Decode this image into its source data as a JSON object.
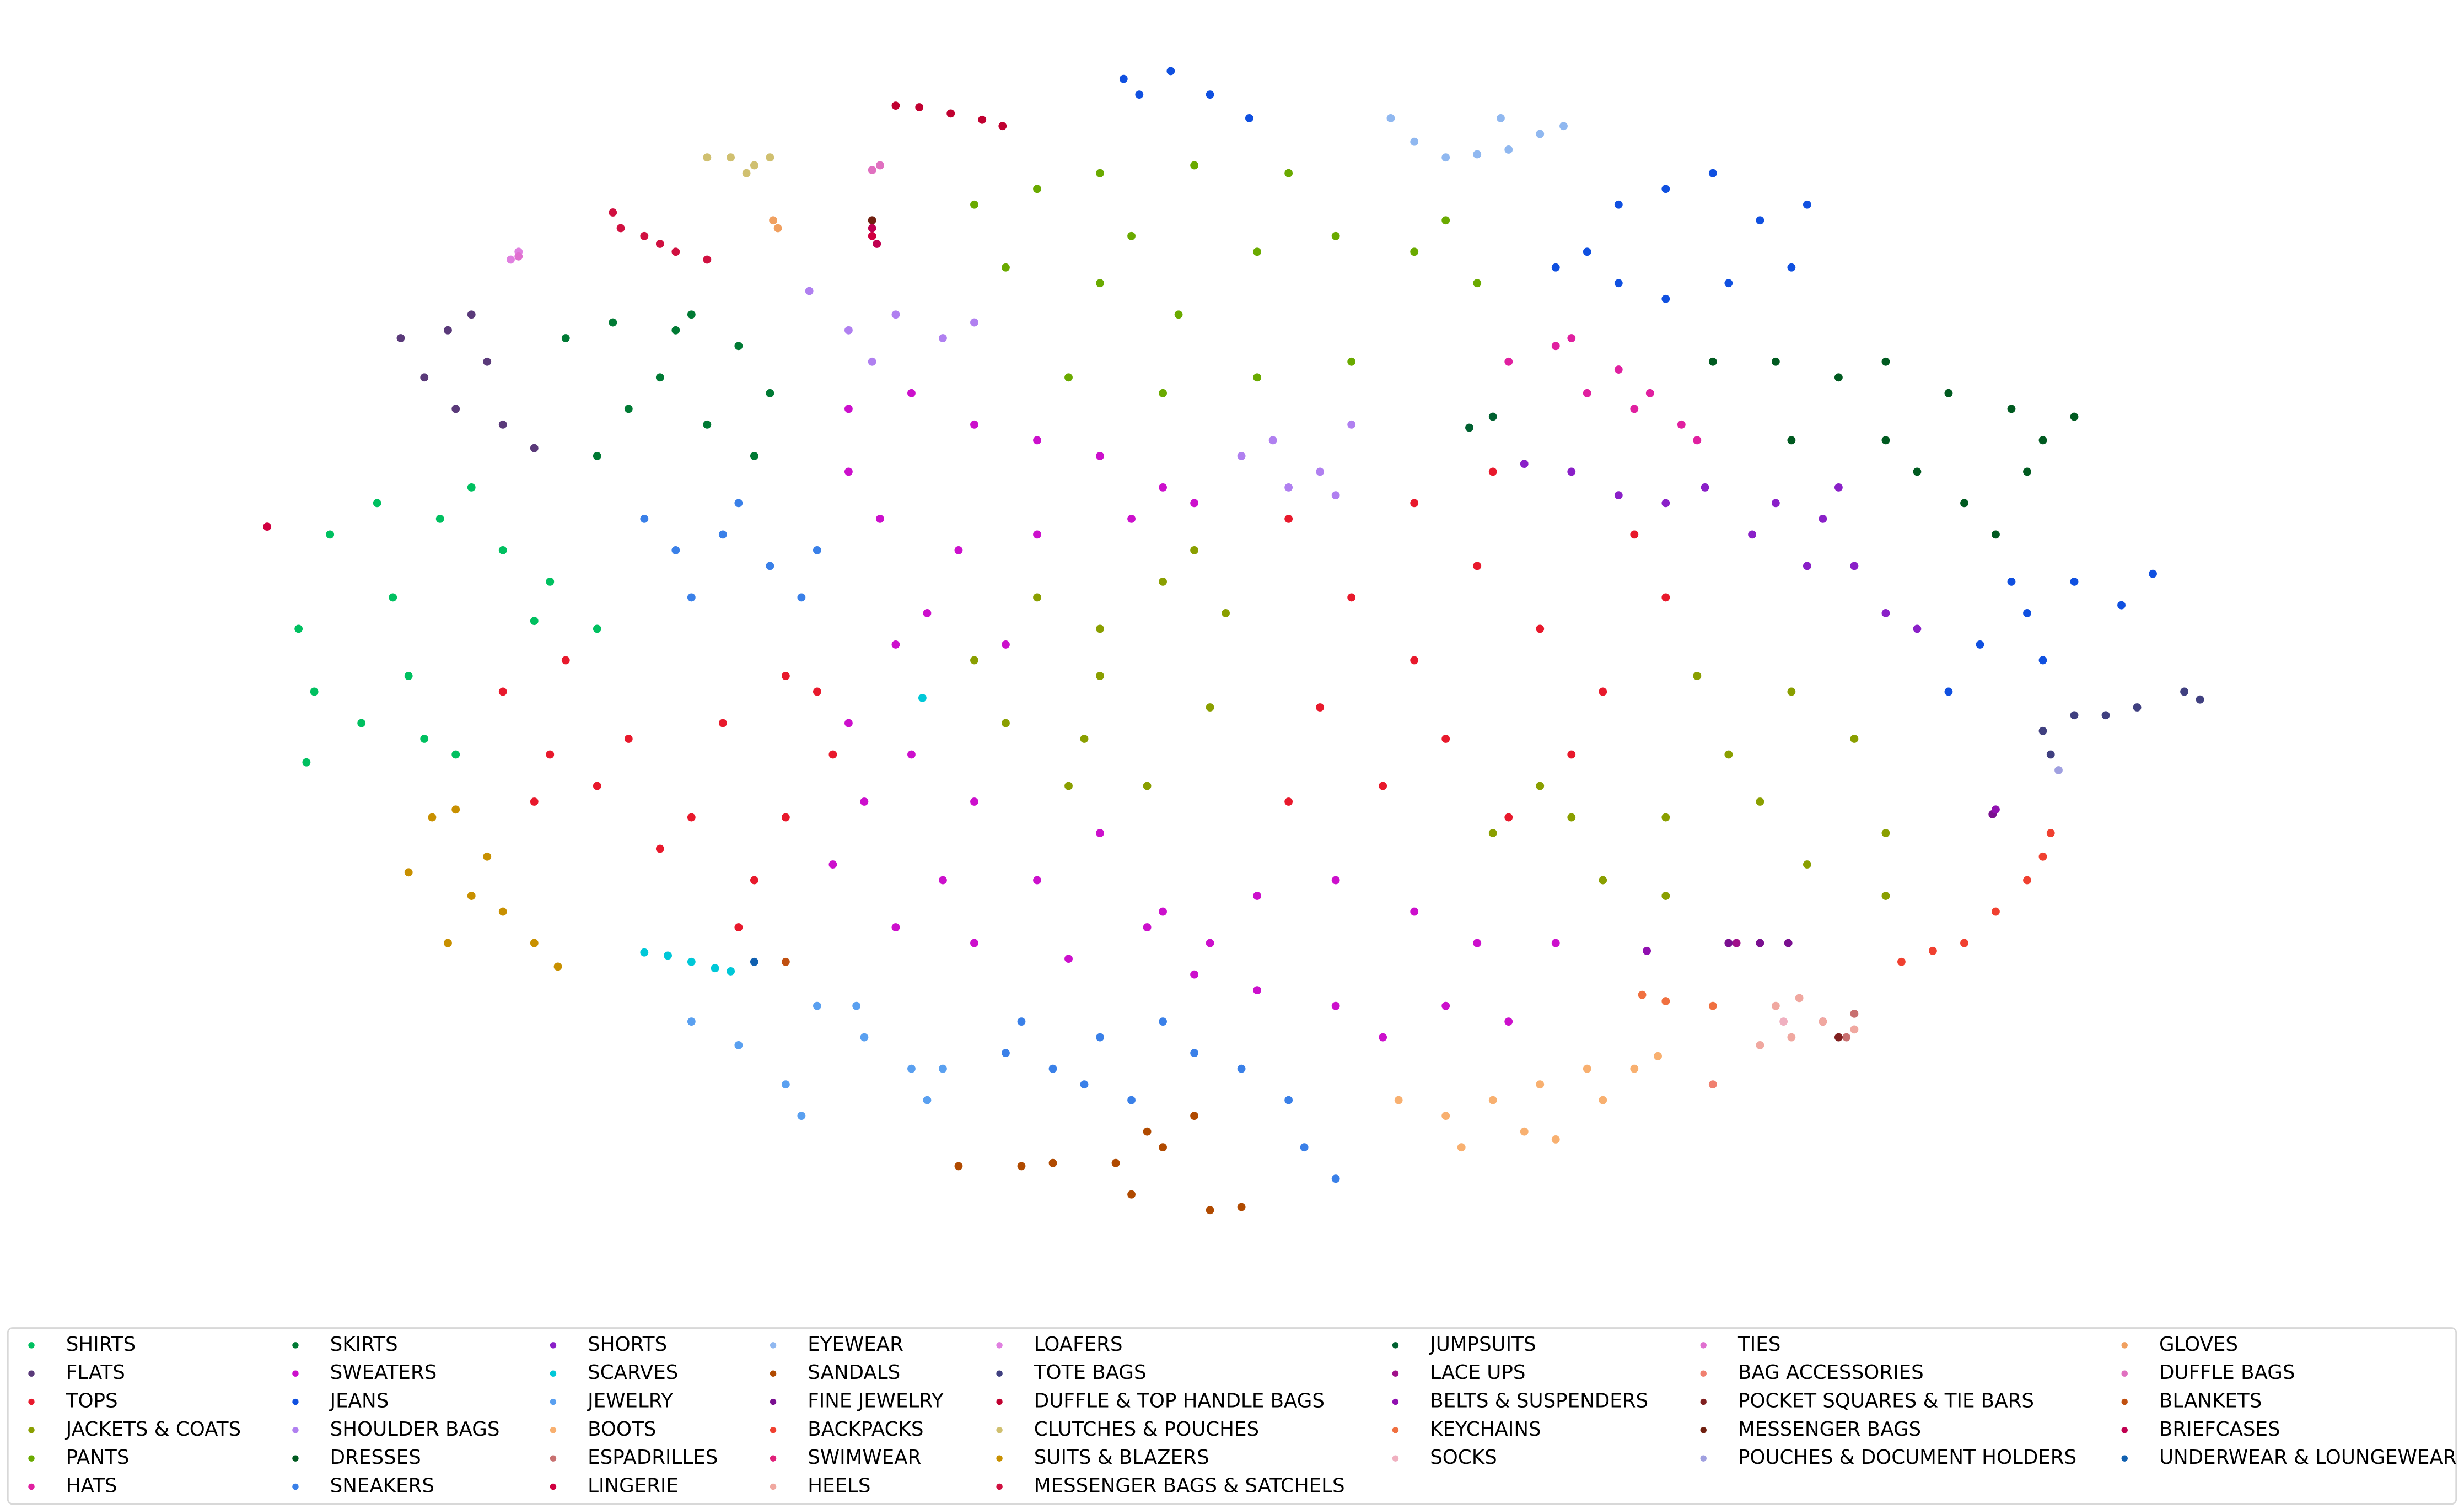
{
  "chart_data": {
    "type": "scatter",
    "xlim": [
      0,
      1568
    ],
    "ylim": [
      820,
      0
    ],
    "legend": "bottom",
    "legend_ncol": 8,
    "series": [
      {
        "name": "SHIRTS",
        "color": "#00c060",
        "x": [
          190,
          210,
          240,
          280,
          320,
          350,
          200,
          230,
          260,
          290,
          380,
          250,
          300,
          195,
          340,
          270
        ],
        "y": [
          400,
          340,
          320,
          330,
          350,
          370,
          440,
          460,
          430,
          480,
          400,
          380,
          310,
          485,
          395,
          470
        ]
      },
      {
        "name": "FLATS",
        "color": "#5a3a7a",
        "x": [
          255,
          270,
          290,
          300,
          320,
          340,
          310,
          285
        ],
        "y": [
          215,
          240,
          260,
          200,
          270,
          285,
          230,
          210
        ]
      },
      {
        "name": "TOPS",
        "color": "#e8192c",
        "x": [
          320,
          350,
          380,
          420,
          460,
          500,
          530,
          480,
          440,
          360,
          400,
          500,
          470,
          340,
          520,
          820,
          860,
          900,
          940,
          980,
          1020,
          1060,
          840,
          880,
          920,
          960,
          1000,
          820,
          900,
          1040,
          950
        ],
        "y": [
          440,
          480,
          500,
          540,
          460,
          430,
          480,
          560,
          520,
          420,
          470,
          520,
          590,
          510,
          440,
          330,
          380,
          320,
          360,
          400,
          440,
          380,
          450,
          500,
          470,
          520,
          480,
          510,
          420,
          340,
          300
        ]
      },
      {
        "name": "JACKETS & COATS",
        "color": "#8a9f00",
        "x": [
          620,
          660,
          700,
          740,
          780,
          640,
          690,
          730,
          770,
          700,
          760,
          680,
          950,
          980,
          1020,
          1060,
          1100,
          1140,
          1180,
          1200,
          1150,
          1080,
          1120,
          1000,
          1200,
          1060
        ],
        "y": [
          420,
          380,
          400,
          370,
          390,
          460,
          470,
          500,
          450,
          430,
          350,
          500,
          530,
          500,
          560,
          520,
          480,
          440,
          470,
          530,
          550,
          430,
          510,
          520,
          570,
          570
        ]
      },
      {
        "name": "PANTS",
        "color": "#6aaa00",
        "x": [
          620,
          660,
          700,
          760,
          820,
          640,
          700,
          750,
          800,
          850,
          680,
          740,
          800,
          860,
          900,
          940,
          920,
          720
        ],
        "y": [
          130,
          120,
          110,
          105,
          110,
          170,
          180,
          200,
          160,
          150,
          240,
          250,
          240,
          230,
          160,
          180,
          140,
          150
        ]
      },
      {
        "name": "HATS",
        "color": "#e020a0",
        "x": [
          960,
          990,
          1010,
          1040,
          1070,
          1080,
          1030,
          1050,
          1000
        ],
        "y": [
          230,
          220,
          250,
          260,
          270,
          280,
          235,
          250,
          215
        ]
      },
      {
        "name": "SKIRTS",
        "color": "#007a34",
        "x": [
          360,
          390,
          430,
          470,
          490,
          450,
          400,
          380,
          420,
          480,
          440
        ],
        "y": [
          215,
          205,
          210,
          220,
          250,
          270,
          260,
          290,
          240,
          290,
          200
        ]
      },
      {
        "name": "SWEATERS",
        "color": "#cc10cc",
        "x": [
          540,
          580,
          620,
          660,
          700,
          740,
          560,
          610,
          660,
          720,
          590,
          640,
          540,
          760,
          570,
          540,
          580,
          620,
          530,
          570,
          620,
          660,
          700,
          740,
          680,
          550,
          600,
          730,
          770,
          800,
          850,
          900,
          940,
          800,
          850,
          880,
          760,
          920,
          990,
          960
        ],
        "y": [
          260,
          250,
          270,
          280,
          290,
          310,
          330,
          350,
          340,
          330,
          390,
          410,
          300,
          320,
          410,
          460,
          480,
          510,
          550,
          590,
          600,
          560,
          530,
          580,
          610,
          510,
          560,
          590,
          600,
          570,
          560,
          580,
          600,
          630,
          640,
          660,
          620,
          640,
          600,
          650
        ]
      },
      {
        "name": "JEANS",
        "color": "#1050e0",
        "x": [
          990,
          1010,
          1030,
          1060,
          1090,
          1120,
          1150,
          1060,
          1100,
          1140,
          1030,
          715,
          745,
          770,
          795,
          725,
          1240,
          1260,
          1290,
          1320,
          1350,
          1370,
          1300,
          1280
        ],
        "y": [
          170,
          160,
          130,
          120,
          110,
          140,
          130,
          190,
          180,
          170,
          180,
          50,
          45,
          60,
          75,
          60,
          440,
          410,
          390,
          370,
          385,
          365,
          420,
          370
        ]
      },
      {
        "name": "SHOULDER BAGS",
        "color": "#b080f0",
        "x": [
          790,
          810,
          840,
          860,
          820,
          850,
          515,
          540,
          570,
          600,
          620,
          555
        ],
        "y": [
          290,
          280,
          300,
          270,
          310,
          315,
          185,
          210,
          200,
          215,
          205,
          230
        ]
      },
      {
        "name": "DRESSES",
        "color": "#005a20",
        "x": [
          1090,
          1130,
          1170,
          1200,
          1240,
          1280,
          1320,
          1200,
          1220,
          1250,
          1270,
          1290,
          1140,
          1300
        ],
        "y": [
          230,
          230,
          240,
          230,
          250,
          260,
          265,
          280,
          300,
          320,
          340,
          300,
          280,
          280
        ]
      },
      {
        "name": "SNEAKERS",
        "color": "#3a80e8",
        "x": [
          410,
          430,
          460,
          490,
          510,
          440,
          470,
          520,
          640,
          670,
          700,
          720,
          690,
          740,
          790,
          820,
          830,
          850,
          650,
          760
        ],
        "y": [
          330,
          350,
          340,
          360,
          380,
          380,
          320,
          350,
          670,
          680,
          660,
          700,
          690,
          650,
          680,
          700,
          730,
          750,
          650,
          670
        ]
      },
      {
        "name": "SHORTS",
        "color": "#8a20c8",
        "x": [
          1115,
          1130,
          1160,
          1180,
          1200,
          1220,
          1150,
          1170,
          970,
          1000,
          1030,
          1060,
          1085
        ],
        "y": [
          340,
          320,
          330,
          360,
          390,
          400,
          360,
          310,
          295,
          300,
          315,
          320,
          310
        ]
      },
      {
        "name": "SCARVES",
        "color": "#00c8d8",
        "x": [
          410,
          425,
          440,
          455,
          465,
          587
        ],
        "y": [
          606,
          608,
          612,
          616,
          618,
          444
        ]
      },
      {
        "name": "JEWELRY",
        "color": "#5aa0f0",
        "x": [
          440,
          470,
          500,
          520,
          550,
          580,
          590,
          545,
          600,
          510
        ],
        "y": [
          650,
          665,
          690,
          640,
          660,
          680,
          700,
          640,
          680,
          710
        ]
      },
      {
        "name": "BOOTS",
        "color": "#f8b070",
        "x": [
          890,
          920,
          950,
          980,
          1010,
          1040,
          1055,
          930,
          970,
          990,
          1020
        ],
        "y": [
          700,
          710,
          700,
          690,
          680,
          680,
          672,
          730,
          720,
          725,
          700
        ]
      },
      {
        "name": "ESPADRILLES",
        "color": "#c87070",
        "x": [
          1175,
          1180
        ],
        "y": [
          660,
          645
        ]
      },
      {
        "name": "LINGERIE",
        "color": "#d00040",
        "x": [
          555,
          170
        ],
        "y": [
          150,
          335
        ]
      },
      {
        "name": "EYEWEAR",
        "color": "#90b8f0",
        "x": [
          885,
          900,
          920,
          940,
          960,
          980,
          995,
          955
        ],
        "y": [
          75,
          90,
          100,
          98,
          95,
          85,
          80,
          75
        ]
      },
      {
        "name": "SANDALS",
        "color": "#b04a00",
        "x": [
          610,
          650,
          670,
          710,
          720,
          740,
          760,
          770,
          790,
          730
        ],
        "y": [
          742,
          742,
          740,
          740,
          760,
          730,
          710,
          770,
          768,
          720
        ]
      },
      {
        "name": "FINE JEWELRY",
        "color": "#7a1090",
        "x": [
          1100,
          1120,
          1138,
          1268
        ],
        "y": [
          600,
          600,
          600,
          518
        ]
      },
      {
        "name": "BACKPACKS",
        "color": "#f04030",
        "x": [
          1210,
          1230,
          1250,
          1270,
          1290,
          1300,
          1305
        ],
        "y": [
          612,
          605,
          600,
          580,
          560,
          545,
          530
        ]
      },
      {
        "name": "SWIMWEAR",
        "color": "#e0207a",
        "x": [
          1160
        ],
        "y": [
          650
        ]
      },
      {
        "name": "HEELS",
        "color": "#f0a8a0",
        "x": [
          1120,
          1130,
          1145,
          1160,
          1180,
          1140
        ],
        "y": [
          665,
          640,
          635,
          650,
          655,
          660
        ]
      },
      {
        "name": "LOAFERS",
        "color": "#e080e0",
        "x": [
          325,
          330
        ],
        "y": [
          165,
          160
        ]
      },
      {
        "name": "TOTE BAGS",
        "color": "#404080",
        "x": [
          1300,
          1320,
          1340,
          1360,
          1390,
          1400,
          1305
        ],
        "y": [
          465,
          455,
          455,
          450,
          440,
          445,
          480
        ]
      },
      {
        "name": "DUFFLE & TOP HANDLE BAGS",
        "color": "#c00030",
        "x": [
          570,
          585,
          605,
          625,
          638
        ],
        "y": [
          67,
          68,
          72,
          76,
          80
        ]
      },
      {
        "name": "CLUTCHES & POUCHES",
        "color": "#d0c070",
        "x": [
          450,
          465,
          480,
          490,
          475
        ],
        "y": [
          100,
          100,
          105,
          100,
          110
        ]
      },
      {
        "name": "SUITS & BLAZERS",
        "color": "#c89000",
        "x": [
          260,
          275,
          290,
          300,
          320,
          340,
          355,
          310,
          285
        ],
        "y": [
          555,
          520,
          515,
          570,
          580,
          600,
          615,
          545,
          600
        ]
      },
      {
        "name": "MESSENGER BAGS & SATCHELS",
        "color": "#d01040",
        "x": [
          390,
          410,
          430,
          450,
          395,
          420
        ],
        "y": [
          135,
          150,
          160,
          165,
          145,
          155
        ]
      },
      {
        "name": "JUMPSUITS",
        "color": "#006030",
        "x": [
          935,
          950
        ],
        "y": [
          272,
          265
        ]
      },
      {
        "name": "LACE UPS",
        "color": "#a0108a",
        "x": [
          1105
        ],
        "y": [
          600
        ]
      },
      {
        "name": "BELTS & SUSPENDERS",
        "color": "#9010b0",
        "x": [
          1270,
          1048
        ],
        "y": [
          515,
          605
        ]
      },
      {
        "name": "KEYCHAINS",
        "color": "#f07040",
        "x": [
          1045,
          1060,
          1090
        ],
        "y": [
          633,
          637,
          640
        ]
      },
      {
        "name": "SOCKS",
        "color": "#f0b0c0",
        "x": [
          1135
        ],
        "y": [
          650
        ]
      },
      {
        "name": "TIES",
        "color": "#e070d0",
        "x": [
          330
        ],
        "y": [
          163
        ]
      },
      {
        "name": "BAG ACCESSORIES",
        "color": "#f08070",
        "x": [
          1090
        ],
        "y": [
          690
        ]
      },
      {
        "name": "POCKET SQUARES & TIE BARS",
        "color": "#802020",
        "x": [
          1170
        ],
        "y": [
          660
        ]
      },
      {
        "name": "MESSENGER BAGS",
        "color": "#702010",
        "x": [
          555
        ],
        "y": [
          140
        ]
      },
      {
        "name": "POUCHES & DOCUMENT HOLDERS",
        "color": "#a0a0e0",
        "x": [
          1310
        ],
        "y": [
          490
        ]
      },
      {
        "name": "GLOVES",
        "color": "#f0a060",
        "x": [
          492,
          495
        ],
        "y": [
          140,
          145
        ]
      },
      {
        "name": "DUFFLE BAGS",
        "color": "#e070c0",
        "x": [
          560,
          555
        ],
        "y": [
          105,
          108
        ]
      },
      {
        "name": "BLANKETS",
        "color": "#c05010",
        "x": [
          500
        ],
        "y": [
          612
        ]
      },
      {
        "name": "BRIEFCASES",
        "color": "#c00050",
        "x": [
          555,
          558
        ],
        "y": [
          145,
          155
        ]
      },
      {
        "name": "UNDERWEAR & LOUNGEWEAR",
        "color": "#1060b0",
        "x": [
          480
        ],
        "y": [
          612
        ]
      }
    ]
  }
}
